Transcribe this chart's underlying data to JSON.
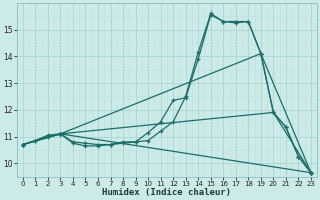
{
  "xlabel": "Humidex (Indice chaleur)",
  "bg_color": "#cceae8",
  "grid_major_color": "#aad4d0",
  "grid_minor_color": "#bde0dc",
  "line_color": "#1a6e66",
  "xlim": [
    -0.5,
    23.5
  ],
  "ylim": [
    9.5,
    16.0
  ],
  "xticks": [
    0,
    1,
    2,
    3,
    4,
    5,
    6,
    7,
    8,
    9,
    10,
    11,
    12,
    13,
    14,
    15,
    16,
    17,
    18,
    19,
    20,
    21,
    22,
    23
  ],
  "yticks": [
    10,
    11,
    12,
    13,
    14,
    15
  ],
  "line1_x": [
    0,
    1,
    2,
    3,
    4,
    5,
    6,
    7,
    8,
    9,
    10,
    11,
    12,
    13,
    14,
    15,
    16,
    17,
    18,
    19,
    20,
    21,
    22,
    23
  ],
  "line1_y": [
    10.7,
    10.85,
    11.0,
    11.1,
    10.75,
    10.65,
    10.65,
    10.7,
    10.75,
    10.8,
    11.15,
    11.55,
    12.35,
    12.45,
    13.9,
    15.55,
    15.3,
    15.25,
    15.3,
    14.1,
    11.9,
    11.35,
    10.25,
    9.65
  ],
  "line2_x": [
    0,
    1,
    2,
    3,
    4,
    5,
    6,
    7,
    8,
    9,
    10,
    11,
    12,
    13,
    14,
    15,
    16,
    17,
    18,
    19,
    20,
    21,
    22,
    23
  ],
  "line2_y": [
    10.7,
    10.85,
    11.05,
    11.1,
    10.8,
    10.75,
    10.7,
    10.7,
    10.8,
    10.8,
    10.85,
    11.2,
    11.55,
    12.5,
    14.15,
    15.6,
    15.3,
    15.3,
    15.3,
    14.1,
    11.9,
    11.35,
    10.25,
    9.65
  ],
  "line3_x": [
    0,
    3,
    23
  ],
  "line3_y": [
    10.7,
    11.1,
    9.65
  ],
  "line4_x": [
    0,
    3,
    19,
    23
  ],
  "line4_y": [
    10.7,
    11.1,
    14.1,
    9.65
  ],
  "line5_x": [
    0,
    3,
    20,
    23
  ],
  "line5_y": [
    10.7,
    11.1,
    11.9,
    9.65
  ]
}
